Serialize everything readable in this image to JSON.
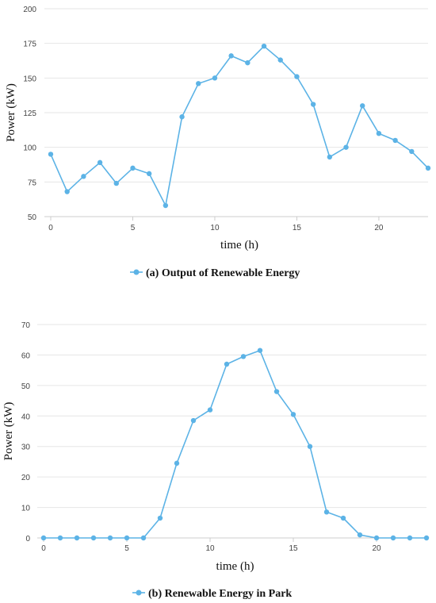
{
  "chart_data": [
    {
      "type": "line",
      "xlabel": "time (h)",
      "ylabel": "Power (kW)",
      "x_ticks": [
        0,
        5,
        10,
        15,
        20
      ],
      "y_ticks": [
        50,
        75,
        100,
        125,
        150,
        175,
        200
      ],
      "xlim": [
        0,
        23
      ],
      "ylim": [
        50,
        200
      ],
      "grid": true,
      "legend_position": "bottom-center",
      "color": "#5cb3e6",
      "series": [
        {
          "name": "(a) Output of Renewable Energy",
          "x": [
            0,
            1,
            2,
            3,
            4,
            5,
            6,
            7,
            8,
            9,
            10,
            11,
            12,
            13,
            14,
            15,
            16,
            17,
            18,
            19,
            20,
            21,
            22,
            23
          ],
          "y": [
            95,
            68,
            79,
            89,
            74,
            85,
            81,
            58,
            122,
            146,
            150,
            166,
            161,
            173,
            163,
            151,
            131,
            93,
            100,
            130,
            110,
            105,
            97,
            85
          ]
        }
      ]
    },
    {
      "type": "line",
      "xlabel": "time (h)",
      "ylabel": "Power (kW)",
      "x_ticks": [
        0,
        5,
        10,
        15,
        20
      ],
      "y_ticks": [
        0,
        10,
        20,
        30,
        40,
        50,
        60,
        70
      ],
      "xlim": [
        0,
        23
      ],
      "ylim": [
        0,
        70
      ],
      "grid": true,
      "legend_position": "bottom-center",
      "color": "#5cb3e6",
      "series": [
        {
          "name": "(b) Renewable Energy in Park",
          "x": [
            0,
            1,
            2,
            3,
            4,
            5,
            6,
            7,
            8,
            9,
            10,
            11,
            12,
            13,
            14,
            15,
            16,
            17,
            18,
            19,
            20,
            21,
            22,
            23
          ],
          "y": [
            0,
            0,
            0,
            0,
            0,
            0,
            0,
            6.5,
            24.5,
            38.5,
            42,
            57,
            59.5,
            61.5,
            48,
            40.5,
            30,
            8.5,
            6.5,
            1,
            0,
            0,
            0,
            0
          ]
        }
      ]
    }
  ]
}
